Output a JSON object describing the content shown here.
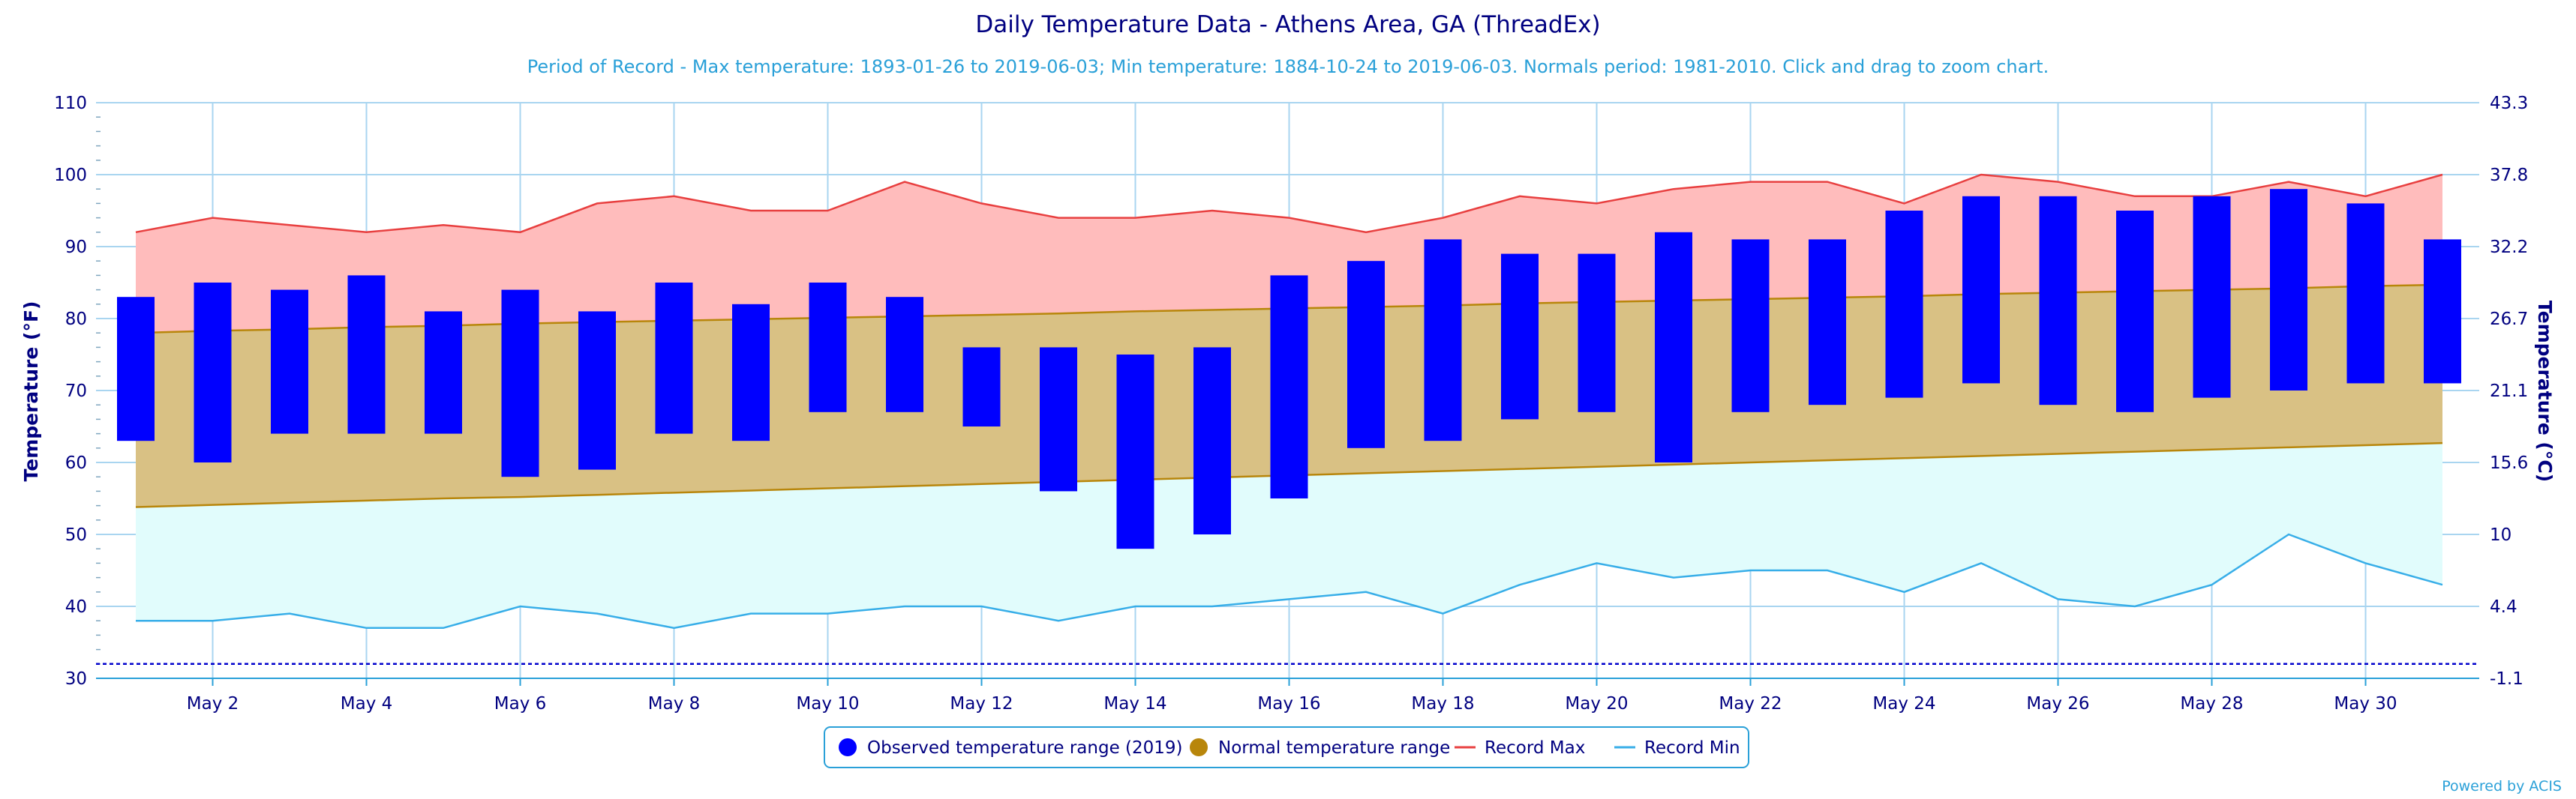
{
  "chart_data": {
    "type": "bar",
    "title": "Daily Temperature Data - Athens Area, GA (ThreadEx)",
    "subtitle": "Period of Record - Max temperature: 1893-01-26 to 2019-06-03; Min temperature: 1884-10-24 to 2019-06-03. Normals period: 1981-2010. Click and drag to zoom chart.",
    "ylabel": "Temperature (°F)",
    "ylabel_right": "Temperature (°C)",
    "ylim": [
      30,
      110
    ],
    "yticks": [
      "30",
      "40",
      "50",
      "60",
      "70",
      "80",
      "90",
      "100",
      "110"
    ],
    "yticks_right": [
      "-1.1",
      "4.4",
      "10",
      "15.6",
      "21.1",
      "26.7",
      "32.2",
      "37.8",
      "43.3"
    ],
    "xlim": [
      1,
      31
    ],
    "x_tick_days": [
      2,
      4,
      6,
      8,
      10,
      12,
      14,
      16,
      18,
      20,
      22,
      24,
      26,
      28,
      30
    ],
    "x_tick_labels": [
      "May 2",
      "May 4",
      "May 6",
      "May 8",
      "May 10",
      "May 12",
      "May 14",
      "May 16",
      "May 18",
      "May 20",
      "May 22",
      "May 24",
      "May 26",
      "May 28",
      "May 30"
    ],
    "grid": true,
    "legend_position": "bottom-center",
    "days": [
      1,
      2,
      3,
      4,
      5,
      6,
      7,
      8,
      9,
      10,
      11,
      12,
      13,
      14,
      15,
      16,
      17,
      18,
      19,
      20,
      21,
      22,
      23,
      24,
      25,
      26,
      27,
      28,
      29,
      30,
      31
    ],
    "observed_high": [
      83,
      85,
      84,
      86,
      81,
      84,
      81,
      85,
      82,
      85,
      83,
      76,
      76,
      75,
      76,
      86,
      88,
      91,
      89,
      89,
      92,
      91,
      91,
      95,
      97,
      97,
      95,
      97,
      98,
      96,
      91
    ],
    "observed_low": [
      63,
      60,
      64,
      64,
      64,
      58,
      59,
      64,
      63,
      67,
      67,
      65,
      56,
      48,
      50,
      55,
      62,
      63,
      66,
      67,
      60,
      67,
      68,
      69,
      71,
      68,
      67,
      69,
      70,
      71,
      71
    ],
    "normal_high": [
      78,
      78.3,
      78.5,
      78.8,
      79,
      79.3,
      79.5,
      79.7,
      79.9,
      80.1,
      80.3,
      80.5,
      80.7,
      81,
      81.2,
      81.4,
      81.6,
      81.8,
      82.1,
      82.3,
      82.5,
      82.7,
      82.9,
      83.1,
      83.4,
      83.6,
      83.8,
      84,
      84.2,
      84.5,
      84.7
    ],
    "normal_low": [
      53.8,
      54.1,
      54.4,
      54.7,
      55,
      55.2,
      55.5,
      55.8,
      56.1,
      56.4,
      56.7,
      57,
      57.3,
      57.6,
      57.9,
      58.2,
      58.5,
      58.8,
      59.1,
      59.4,
      59.7,
      60,
      60.3,
      60.6,
      60.9,
      61.2,
      61.5,
      61.8,
      62.1,
      62.4,
      62.7
    ],
    "record_max": [
      92,
      94,
      93,
      92,
      93,
      92,
      96,
      97,
      95,
      95,
      99,
      96,
      94,
      94,
      95,
      94,
      92,
      94,
      97,
      96,
      98,
      99,
      99,
      96,
      100,
      99,
      97,
      97,
      99,
      97,
      100
    ],
    "record_min": [
      38,
      38,
      39,
      37,
      37,
      40,
      39,
      37,
      39,
      39,
      40,
      40,
      38,
      40,
      40,
      41,
      42,
      39,
      43,
      46,
      44,
      45,
      45,
      42,
      46,
      41,
      40,
      43,
      50,
      46,
      43
    ],
    "reference_line": 32,
    "colors": {
      "observed": "#0000ff",
      "normal": "#d9c184",
      "normal_border": "#b8860b",
      "record_max_fill": "#ffbcbc",
      "record_max_line": "#e84040",
      "record_min_fill": "#e1fcfc",
      "record_min_line": "#38aee8",
      "grid": "#a9d5f0",
      "reference": "#0000cc"
    },
    "legend": [
      {
        "label": "Observed temperature range (2019)",
        "marker": "circle",
        "color": "#0000ff"
      },
      {
        "label": "Normal temperature range",
        "marker": "circle",
        "color": "#b8860b"
      },
      {
        "label": "Record Max",
        "marker": "line",
        "color": "#e84040"
      },
      {
        "label": "Record Min",
        "marker": "line",
        "color": "#38aee8"
      }
    ]
  },
  "credit": "Powered by ACIS"
}
